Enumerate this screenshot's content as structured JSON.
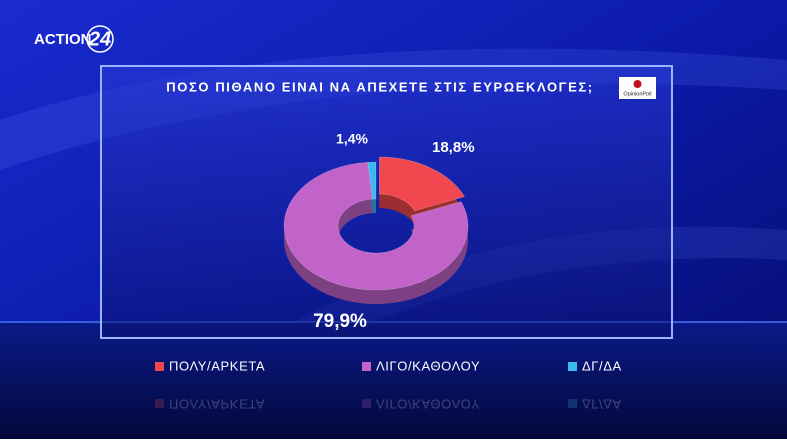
{
  "branding": {
    "channel": "ACTION",
    "channel_number": "24",
    "pollster": "OpinionPoll"
  },
  "chart_data": {
    "type": "donut",
    "title": "ΠΟΣΟ ΠΙΘΑΝΟ ΕΙΝΑΙ ΝΑ ΑΠΕΧΕΤΕ ΣΤΙΣ ΕΥΡΩΕΚΛΟΓΕΣ;",
    "categories": [
      "ΠΟΛΥ/ΑΡΚΕΤΑ",
      "ΛΙΓΟ/ΚΑΘΟΛΟΥ",
      "ΔΓ/ΔΑ"
    ],
    "values": [
      18.8,
      79.9,
      1.4
    ],
    "value_labels": [
      "18,8%",
      "79,9%",
      "1,4%"
    ],
    "colors": [
      "#f0484e",
      "#c163c9",
      "#39b9f0"
    ]
  }
}
